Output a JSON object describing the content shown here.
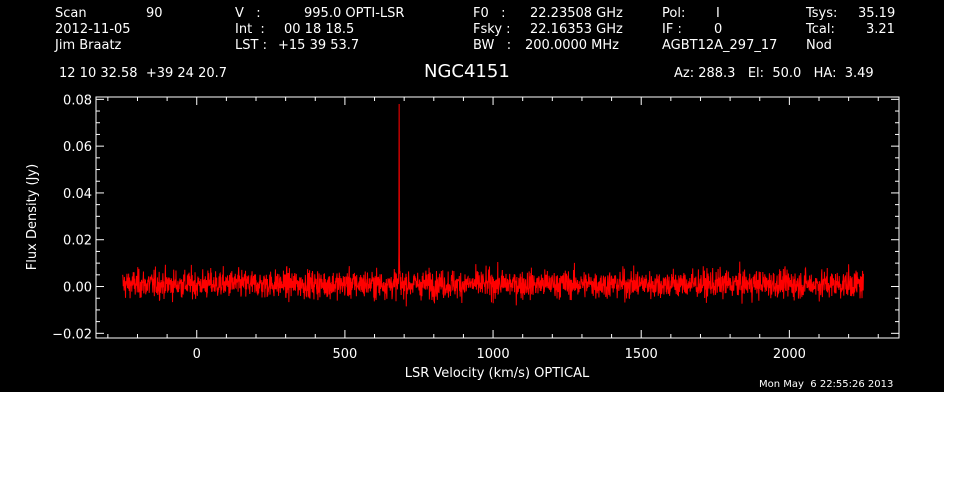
{
  "header": {
    "scan_label": "Scan",
    "scan_value": "90",
    "date": "2012-11-05",
    "observer": "Jim Braatz",
    "v_label": "V   :",
    "v_value": "995.0 OPTI-LSR",
    "int_label": "Int  :",
    "int_value": "00 18 18.5",
    "lst_label": "LST :",
    "lst_value": "+15 39 53.7",
    "f0_label": "F0   :",
    "f0_value": "22.23508 GHz",
    "fsky_label": "Fsky :",
    "fsky_value": "22.16353 GHz",
    "bw_label": "BW   :",
    "bw_value": "200.0000 MHz",
    "pol_label": "Pol:",
    "pol_value": "I",
    "if_label": "IF :",
    "if_value": "0",
    "project": "AGBT12A_297_17",
    "tsys_label": "Tsys:",
    "tsys_value": "35.19",
    "tcal_label": "Tcal:",
    "tcal_value": "3.21",
    "mode": "Nod",
    "coords": "12 10 32.58  +39 24 20.7",
    "source": "NGC4151",
    "az_el_ha": "Az: 288.3   El:  50.0   HA:  3.49"
  },
  "footer": {
    "timestamp": "Mon May  6 22:55:26 2013"
  },
  "colors": {
    "background": "#000000",
    "trace": "#ff0000",
    "axes": "#ffffff"
  },
  "chart_data": {
    "type": "line",
    "xlabel": "LSR Velocity (km/s) OPTICAL",
    "ylabel": "Flux Density (Jy)",
    "xlim": [
      -340,
      2370
    ],
    "ylim": [
      -0.022,
      0.081
    ],
    "xticks": [
      0,
      500,
      1000,
      1500,
      2000
    ],
    "xtick_labels": [
      "0",
      "500",
      "1000",
      "1500",
      "2000"
    ],
    "yticks": [
      -0.02,
      0.0,
      0.02,
      0.04,
      0.06,
      0.08
    ],
    "ytick_labels": [
      "−0.02",
      "0.00",
      "0.02",
      "0.04",
      "0.06",
      "0.08"
    ],
    "series": [
      {
        "x_range": [
          -250,
          2250
        ],
        "noise_rms": 0.003,
        "baseline": 0.001,
        "peaks": [
          {
            "x": 683,
            "y": 0.078
          },
          {
            "x": 682,
            "y": 0.015
          },
          {
            "x": 684,
            "y": 0.012
          }
        ]
      }
    ],
    "grid": false
  }
}
